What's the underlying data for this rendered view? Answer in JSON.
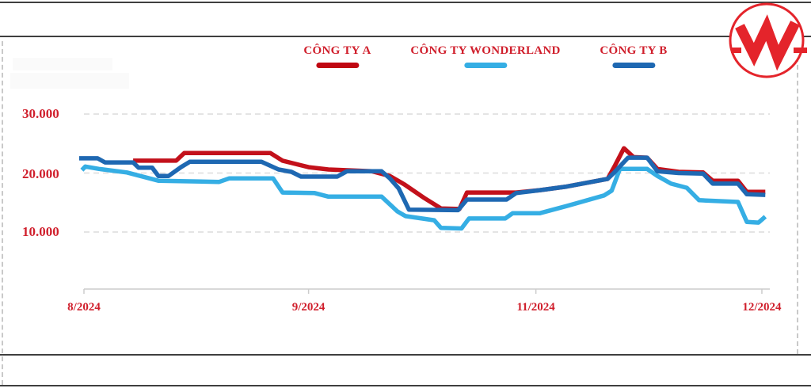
{
  "frame": {
    "border_color": "#3f3f3f",
    "dashed_border_color": "#c9c9c9"
  },
  "logo": {
    "letter": "W",
    "color": "#e4242b"
  },
  "legend": [
    {
      "label": "CÔNG TY A",
      "color": "#c00712"
    },
    {
      "label": "CÔNG TY WONDERLAND",
      "color": "#35aee4"
    },
    {
      "label": "CÔNG TY B",
      "color": "#1e68b2"
    }
  ],
  "chart_data": {
    "type": "line",
    "title": "",
    "xlabel": "",
    "ylabel": "",
    "grid": "horizontal dashed gridlines at each y tick",
    "legend_position": "top",
    "label_color": "#d01f2c",
    "grid_color": "#dcdcdc",
    "axis_color": "#cccccc",
    "x_ticks": [
      {
        "label": "8/2024",
        "f": 0.0
      },
      {
        "label": "9/2024",
        "f": 0.329
      },
      {
        "label": "11/2024",
        "f": 0.662
      },
      {
        "label": "12/2024",
        "f": 0.993
      }
    ],
    "y_ticks": [
      {
        "label": "10.000",
        "value": 10000
      },
      {
        "label": "20.000",
        "value": 20000
      },
      {
        "label": "30.000",
        "value": 30000
      }
    ],
    "ylim": [
      300,
      32000
    ],
    "series": [
      {
        "name": "CÔNG TY WONDERLAND",
        "color": "#35aee4",
        "points": [
          [
            -0.003,
            20500
          ],
          [
            0.002,
            21100
          ],
          [
            0.022,
            20700
          ],
          [
            0.063,
            20100
          ],
          [
            0.109,
            18700
          ],
          [
            0.198,
            18500
          ],
          [
            0.213,
            19100
          ],
          [
            0.277,
            19100
          ],
          [
            0.291,
            16700
          ],
          [
            0.338,
            16600
          ],
          [
            0.358,
            16000
          ],
          [
            0.436,
            16000
          ],
          [
            0.459,
            13500
          ],
          [
            0.471,
            12700
          ],
          [
            0.513,
            12000
          ],
          [
            0.523,
            10700
          ],
          [
            0.553,
            10600
          ],
          [
            0.564,
            12300
          ],
          [
            0.617,
            12300
          ],
          [
            0.628,
            13200
          ],
          [
            0.668,
            13200
          ],
          [
            0.707,
            14400
          ],
          [
            0.762,
            16200
          ],
          [
            0.773,
            17000
          ],
          [
            0.785,
            20700
          ],
          [
            0.825,
            20700
          ],
          [
            0.84,
            19500
          ],
          [
            0.86,
            18200
          ],
          [
            0.883,
            17500
          ],
          [
            0.901,
            15400
          ],
          [
            0.958,
            15100
          ],
          [
            0.971,
            11700
          ],
          [
            0.988,
            11600
          ],
          [
            0.998,
            12600
          ]
        ]
      },
      {
        "name": "CÔNG TY A",
        "color": "#c3111b",
        "points": [
          [
            0.072,
            22100
          ],
          [
            0.135,
            22100
          ],
          [
            0.147,
            23400
          ],
          [
            0.273,
            23400
          ],
          [
            0.291,
            22100
          ],
          [
            0.329,
            21000
          ],
          [
            0.358,
            20600
          ],
          [
            0.422,
            20300
          ],
          [
            0.448,
            19500
          ],
          [
            0.469,
            18100
          ],
          [
            0.498,
            15800
          ],
          [
            0.523,
            14000
          ],
          [
            0.55,
            13900
          ],
          [
            0.561,
            16700
          ],
          [
            0.633,
            16700
          ],
          [
            0.668,
            17100
          ],
          [
            0.707,
            17700
          ],
          [
            0.767,
            19000
          ],
          [
            0.778,
            21300
          ],
          [
            0.791,
            24200
          ],
          [
            0.805,
            22700
          ],
          [
            0.825,
            22600
          ],
          [
            0.84,
            20700
          ],
          [
            0.871,
            20200
          ],
          [
            0.907,
            20100
          ],
          [
            0.921,
            18700
          ],
          [
            0.958,
            18700
          ],
          [
            0.971,
            16800
          ],
          [
            0.998,
            16800
          ]
        ]
      },
      {
        "name": "CÔNG TY B",
        "color": "#1e68b2",
        "points": [
          [
            -0.007,
            22500
          ],
          [
            0.02,
            22500
          ],
          [
            0.031,
            21800
          ],
          [
            0.072,
            21800
          ],
          [
            0.08,
            20900
          ],
          [
            0.1,
            20900
          ],
          [
            0.109,
            19500
          ],
          [
            0.124,
            19500
          ],
          [
            0.142,
            21000
          ],
          [
            0.155,
            21900
          ],
          [
            0.26,
            21900
          ],
          [
            0.285,
            20600
          ],
          [
            0.304,
            20200
          ],
          [
            0.318,
            19400
          ],
          [
            0.371,
            19400
          ],
          [
            0.385,
            20300
          ],
          [
            0.436,
            20300
          ],
          [
            0.448,
            19100
          ],
          [
            0.461,
            17400
          ],
          [
            0.476,
            13800
          ],
          [
            0.548,
            13700
          ],
          [
            0.561,
            15500
          ],
          [
            0.619,
            15500
          ],
          [
            0.633,
            16600
          ],
          [
            0.668,
            17100
          ],
          [
            0.707,
            17700
          ],
          [
            0.767,
            19000
          ],
          [
            0.776,
            20000
          ],
          [
            0.797,
            22600
          ],
          [
            0.825,
            22600
          ],
          [
            0.84,
            20300
          ],
          [
            0.871,
            20000
          ],
          [
            0.907,
            19900
          ],
          [
            0.921,
            18200
          ],
          [
            0.958,
            18200
          ],
          [
            0.971,
            16400
          ],
          [
            0.998,
            16300
          ]
        ]
      }
    ]
  }
}
